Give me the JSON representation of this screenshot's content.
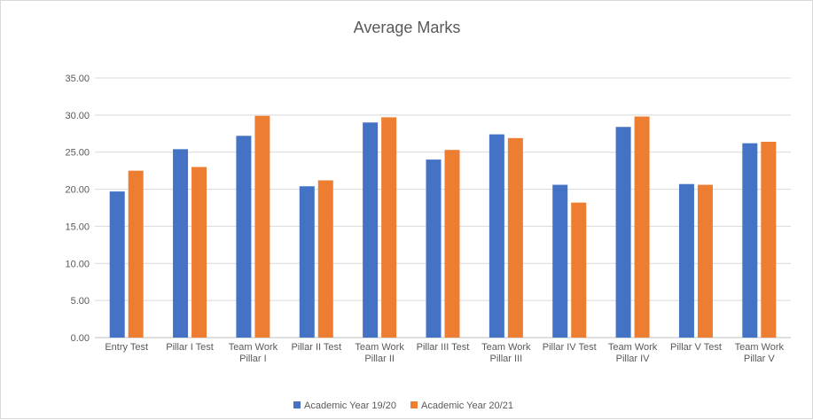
{
  "chart_data": {
    "type": "bar",
    "title": "Average Marks",
    "xlabel": "",
    "ylabel": "",
    "ylim": [
      0,
      35
    ],
    "yticks": [
      "0.00",
      "5.00",
      "10.00",
      "15.00",
      "20.00",
      "25.00",
      "30.00",
      "35.00"
    ],
    "grid": true,
    "legend_position": "bottom",
    "categories": [
      [
        "Entry Test"
      ],
      [
        "Pillar I Test"
      ],
      [
        "Team Work",
        "Pillar I"
      ],
      [
        "Pillar II Test"
      ],
      [
        "Team Work",
        "Pillar II"
      ],
      [
        "Pillar III Test"
      ],
      [
        "Team Work",
        "Pillar III"
      ],
      [
        "Pillar IV Test"
      ],
      [
        "Team Work",
        "Pillar IV"
      ],
      [
        "Pillar V Test"
      ],
      [
        "Team Work",
        "Pillar V"
      ]
    ],
    "series": [
      {
        "name": "Academic Year 19/20",
        "color": "#4472C4",
        "values": [
          19.7,
          25.4,
          27.2,
          20.4,
          29.0,
          24.0,
          27.4,
          20.6,
          28.4,
          20.7,
          26.2
        ]
      },
      {
        "name": "Academic Year 20/21",
        "color": "#ED7D31",
        "values": [
          22.5,
          23.0,
          29.9,
          21.2,
          29.7,
          25.3,
          26.9,
          18.2,
          29.8,
          20.6,
          26.4
        ]
      }
    ]
  }
}
